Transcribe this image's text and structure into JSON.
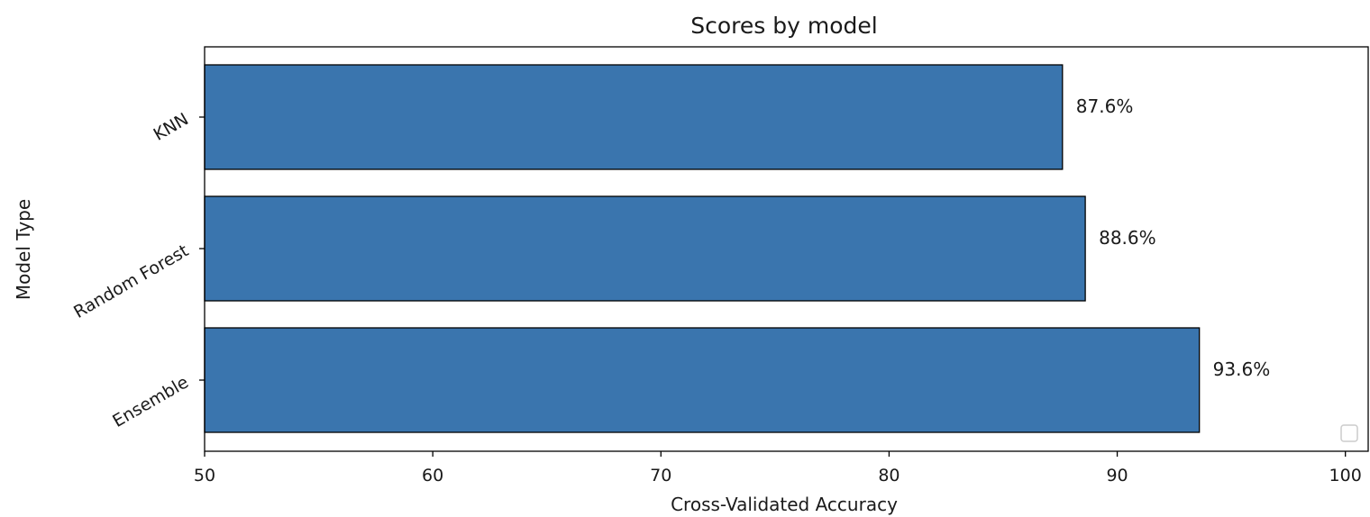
{
  "chart_data": {
    "type": "bar",
    "orientation": "horizontal",
    "title": "Scores by model",
    "xlabel": "Cross-Validated Accuracy",
    "ylabel": "Model Type",
    "categories": [
      "Ensemble",
      "Random Forest",
      "KNN"
    ],
    "values": [
      93.6,
      88.6,
      87.6
    ],
    "value_labels": [
      "93.6%",
      "88.6%",
      "87.6%"
    ],
    "xlim": [
      50,
      101
    ],
    "xticks": [
      50,
      60,
      70,
      80,
      90,
      100
    ],
    "grid": false,
    "legend": {
      "placement": "lower-right",
      "entries": []
    },
    "colors": {
      "bar": "#3a75ae",
      "edge": "#000000"
    }
  }
}
